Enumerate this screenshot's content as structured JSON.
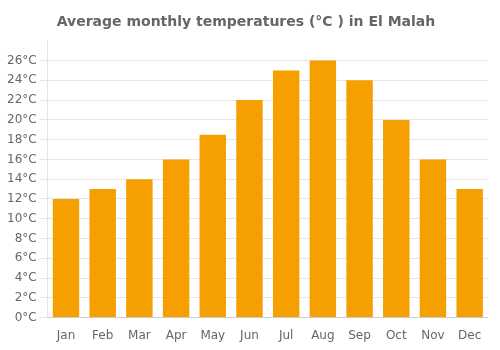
{
  "chart_data": {
    "type": "bar",
    "title": "Average monthly temperatures (°C ) in El Malah",
    "categories": [
      "Jan",
      "Feb",
      "Mar",
      "Apr",
      "May",
      "Jun",
      "Jul",
      "Aug",
      "Sep",
      "Oct",
      "Nov",
      "Dec"
    ],
    "values": [
      12,
      13,
      14,
      16,
      18.5,
      22,
      25,
      26,
      24,
      20,
      16,
      13
    ],
    "color": "#F5A000",
    "ylim": [
      0,
      28
    ],
    "yticks": [
      {
        "value": 0,
        "label": "0°C"
      },
      {
        "value": 2,
        "label": "2°C"
      },
      {
        "value": 4,
        "label": "4°C"
      },
      {
        "value": 6,
        "label": "6°C"
      },
      {
        "value": 8,
        "label": "8°C"
      },
      {
        "value": 10,
        "label": "10°C"
      },
      {
        "value": 12,
        "label": "12°C"
      },
      {
        "value": 14,
        "label": "14°C"
      },
      {
        "value": 16,
        "label": "16°C"
      },
      {
        "value": 18,
        "label": "18°C"
      },
      {
        "value": 20,
        "label": "20°C"
      },
      {
        "value": 22,
        "label": "22°C"
      },
      {
        "value": 24,
        "label": "24°C"
      },
      {
        "value": 26,
        "label": "26°C"
      }
    ],
    "grid": true
  }
}
